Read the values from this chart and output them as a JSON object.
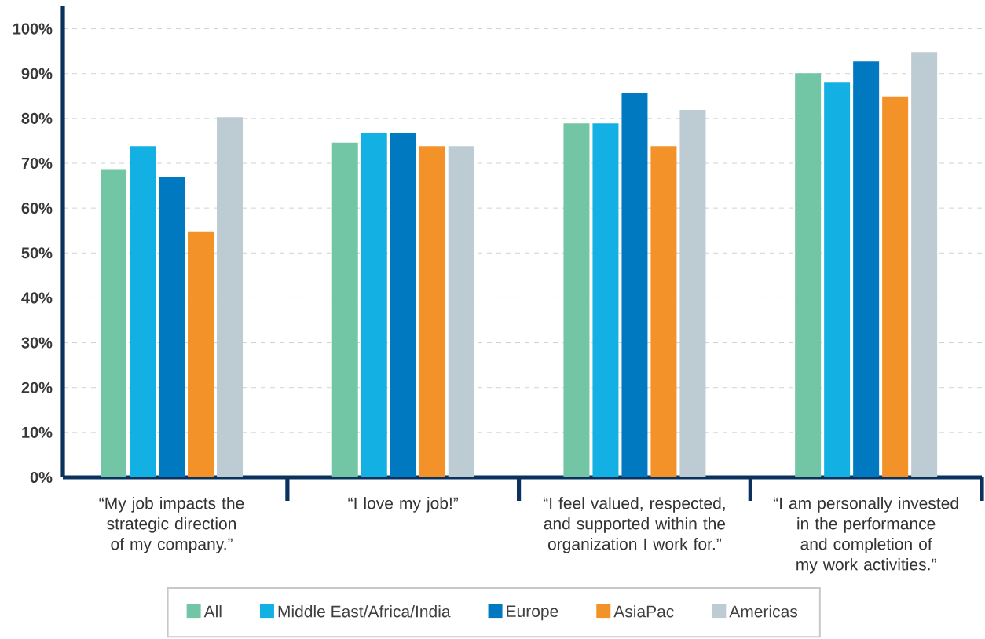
{
  "chart_data": {
    "type": "bar",
    "categories": [
      "“My job impacts the strategic direction of my company.”",
      "“I love my job!”",
      "“I feel valued, respected, and supported within the organization I work for.”",
      "“I am personally invested in the performance and completion of my work activities.”"
    ],
    "series": [
      {
        "name": "All",
        "color": "#72c6a5",
        "values": [
          68.7,
          74.6,
          78.9,
          90.1
        ]
      },
      {
        "name": "Middle East/Africa/India",
        "color": "#13b1e3",
        "values": [
          73.8,
          76.7,
          78.9,
          88.0
        ]
      },
      {
        "name": "Europe",
        "color": "#0079c1",
        "values": [
          66.9,
          76.7,
          85.7,
          92.7
        ]
      },
      {
        "name": "AsiaPac",
        "color": "#f39229",
        "values": [
          54.8,
          73.8,
          73.8,
          84.9
        ]
      },
      {
        "name": "Americas",
        "color": "#bdcbd3",
        "values": [
          80.3,
          73.8,
          81.9,
          94.8
        ]
      }
    ],
    "ylim": [
      0,
      105
    ],
    "yticks": [
      {
        "value": 0,
        "label": "0%"
      },
      {
        "value": 10,
        "label": "10%"
      },
      {
        "value": 20,
        "label": "20%"
      },
      {
        "value": 30,
        "label": "30%"
      },
      {
        "value": 40,
        "label": "40%"
      },
      {
        "value": 50,
        "label": "50%"
      },
      {
        "value": 60,
        "label": "60%"
      },
      {
        "value": 70,
        "label": "70%"
      },
      {
        "value": 80,
        "label": "80%"
      },
      {
        "value": 90,
        "label": "90%"
      },
      {
        "value": 100,
        "label": "100%"
      }
    ],
    "grid": "y",
    "legend": "bottom"
  }
}
